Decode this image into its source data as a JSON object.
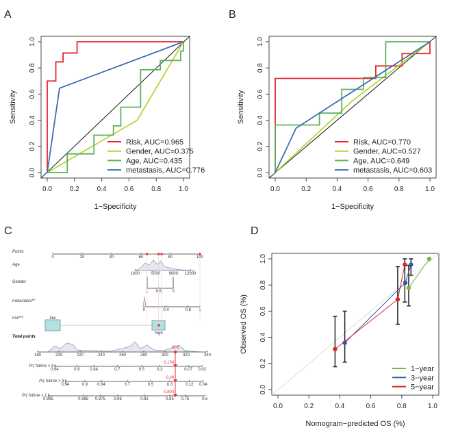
{
  "panels": {
    "a": "A",
    "b": "B",
    "c": "C",
    "d": "D"
  },
  "chart_data": [
    {
      "type": "line",
      "panel": "A",
      "xlabel": "1−Specificity",
      "ylabel": "Sensitivity",
      "xlim": [
        0,
        1
      ],
      "ylim": [
        0,
        1
      ],
      "x_ticks": [
        "0.0",
        "0.2",
        "0.4",
        "0.6",
        "0.8",
        "1.0"
      ],
      "y_ticks": [
        "0.0",
        "0.2",
        "0.4",
        "0.6",
        "0.8",
        "1.0"
      ],
      "diagonal": true,
      "legend_position": "bottom-right",
      "series": [
        {
          "name": "Risk, AUC=0.965",
          "color": "#e8262b",
          "points": [
            [
              0,
              0
            ],
            [
              0,
              0.7
            ],
            [
              0.063,
              0.7
            ],
            [
              0.063,
              0.846
            ],
            [
              0.116,
              0.846
            ],
            [
              0.116,
              0.914
            ],
            [
              0.219,
              0.914
            ],
            [
              0.219,
              1
            ],
            [
              1,
              1
            ]
          ]
        },
        {
          "name": "Gender, AUC=0.375",
          "color": "#b8d432",
          "points": [
            [
              0,
              0
            ],
            [
              0.66,
              0.4
            ],
            [
              1,
              1
            ]
          ]
        },
        {
          "name": "Age, AUC=0.435",
          "color": "#5db15c",
          "points": [
            [
              0,
              0
            ],
            [
              0.147,
              0
            ],
            [
              0.147,
              0.143
            ],
            [
              0.343,
              0.143
            ],
            [
              0.343,
              0.286
            ],
            [
              0.486,
              0.286
            ],
            [
              0.486,
              0.357
            ],
            [
              0.54,
              0.357
            ],
            [
              0.54,
              0.5
            ],
            [
              0.685,
              0.5
            ],
            [
              0.685,
              0.786
            ],
            [
              0.83,
              0.786
            ],
            [
              0.83,
              0.857
            ],
            [
              0.98,
              0.857
            ],
            [
              0.98,
              0.929
            ],
            [
              1,
              0.929
            ],
            [
              1,
              1
            ]
          ]
        },
        {
          "name": "metastasis, AUC=0.776",
          "color": "#3a6fb0",
          "points": [
            [
              0,
              0
            ],
            [
              0.09,
              0.645
            ],
            [
              1,
              1
            ]
          ]
        }
      ]
    },
    {
      "type": "line",
      "panel": "B",
      "xlabel": "1−Specificity",
      "ylabel": "Sensitivity",
      "xlim": [
        0,
        1
      ],
      "ylim": [
        0,
        1
      ],
      "x_ticks": [
        "0.0",
        "0.2",
        "0.4",
        "0.6",
        "0.8",
        "1.0"
      ],
      "y_ticks": [
        "0.0",
        "0.2",
        "0.4",
        "0.6",
        "0.8",
        "1.0"
      ],
      "diagonal": true,
      "legend_position": "bottom-right",
      "series": [
        {
          "name": "Risk, AUC=0.770",
          "color": "#e8262b",
          "points": [
            [
              0,
              0
            ],
            [
              0,
              0.72
            ],
            [
              0.65,
              0.72
            ],
            [
              0.65,
              0.815
            ],
            [
              0.82,
              0.815
            ],
            [
              0.82,
              0.91
            ],
            [
              1,
              0.91
            ],
            [
              1,
              1
            ]
          ]
        },
        {
          "name": "Gender, AUC=0.527",
          "color": "#b8d432",
          "points": [
            [
              0,
              0
            ],
            [
              0.5,
              0.55
            ],
            [
              1,
              1
            ]
          ]
        },
        {
          "name": "Age, AUC=0.649",
          "color": "#5db15c",
          "points": [
            [
              0,
              0
            ],
            [
              0,
              0.364
            ],
            [
              0.286,
              0.364
            ],
            [
              0.286,
              0.455
            ],
            [
              0.43,
              0.455
            ],
            [
              0.43,
              0.636
            ],
            [
              0.57,
              0.636
            ],
            [
              0.57,
              0.727
            ],
            [
              0.714,
              0.727
            ],
            [
              0.714,
              1
            ],
            [
              1,
              1
            ]
          ]
        },
        {
          "name": "metastasis, AUC=0.603",
          "color": "#3a6fb0",
          "points": [
            [
              0,
              0
            ],
            [
              0.135,
              0.34
            ],
            [
              1,
              1
            ]
          ]
        }
      ]
    },
    {
      "type": "nomogram",
      "panel": "C",
      "rows": [
        {
          "label": "Points",
          "italic": true,
          "ticks": [
            [
              "0",
              0
            ],
            [
              "20",
              20
            ],
            [
              "40",
              40
            ],
            [
              "60",
              60
            ],
            [
              "80",
              80
            ],
            [
              "100",
              100
            ]
          ]
        },
        {
          "label": "Age",
          "ticks": [
            [
              "1000",
              56
            ],
            [
              "5000",
              70
            ],
            [
              "9000",
              82
            ],
            [
              "12000",
              93.5
            ]
          ]
        },
        {
          "label": "Gender",
          "ticks": [
            [
              "1",
              64
            ],
            [
              "0.6",
              72
            ],
            [
              "0",
              82
            ]
          ]
        },
        {
          "label": "metastasis**",
          "ticks": [
            [
              "0",
              62
            ],
            [
              "0.4",
              77
            ],
            [
              "0.8",
              92
            ],
            [
              "1",
              100
            ]
          ]
        },
        {
          "label": "risk***",
          "levels": [
            [
              "low",
              0
            ],
            [
              "high",
              72
            ]
          ]
        }
      ],
      "selected_points": [
        64,
        72,
        74,
        100
      ],
      "total_points": {
        "label": "Total points",
        "ticks": [
          "180",
          "200",
          "220",
          "240",
          "260",
          "280",
          "300",
          "320",
          "340"
        ],
        "range": [
          180,
          340
        ],
        "value": "309"
      },
      "probabilities": [
        {
          "label": "Pr( futime > 5 )",
          "value": "0.154",
          "ticks": [
            [
              "0.94",
              196
            ],
            [
              "0.9",
              217
            ],
            [
              "0.84",
              233
            ],
            [
              "0.7",
              255
            ],
            [
              "0.5",
              278
            ],
            [
              "0.3",
              295
            ],
            [
              "0.07",
              322
            ],
            [
              "0.02",
              335
            ]
          ]
        },
        {
          "label": "Pr( futime > 3 )",
          "value": "0.24",
          "ticks": [
            [
              "0.94",
              206
            ],
            [
              "0.9",
              224.5
            ],
            [
              "0.84",
              240
            ],
            [
              "0.7",
              264.5
            ],
            [
              "0.5",
              286.5
            ],
            [
              "0.3",
              304.5
            ],
            [
              "0.12",
              323
            ],
            [
              "0.04",
              336
            ]
          ]
        },
        {
          "label": "Pr( futime > 1 )",
          "value": "0.803",
          "ticks": [
            [
              "0.995",
              190
            ],
            [
              "0.985",
              223
            ],
            [
              "0.975",
              239
            ],
            [
              "0.96",
              255.5
            ],
            [
              "0.92",
              280.6
            ],
            [
              "0.85",
              304.5
            ],
            [
              "0.75",
              319
            ],
            [
              "0.6",
              337.5
            ]
          ]
        }
      ]
    },
    {
      "type": "scatter",
      "panel": "D",
      "xlabel": "Nomogram−predicted OS (%)",
      "ylabel": "Observed OS (%)",
      "xlim": [
        0,
        1
      ],
      "ylim": [
        0,
        1
      ],
      "x_ticks": [
        "0.0",
        "0.2",
        "0.4",
        "0.6",
        "0.8",
        "1.0"
      ],
      "y_ticks": [
        "0.0",
        "0.2",
        "0.4",
        "0.6",
        "0.8",
        "1.0"
      ],
      "diagonal": true,
      "legend_position": "bottom-right",
      "series": [
        {
          "name": "1−year",
          "color": "#7cb342",
          "points": [
            [
              0.845,
              0.778
            ],
            [
              0.978,
              1.0
            ]
          ]
        },
        {
          "name": "3−year",
          "color": "#2f56a8",
          "points": [
            [
              0.432,
              0.358
            ],
            [
              0.823,
              0.817
            ],
            [
              0.86,
              0.956
            ]
          ]
        },
        {
          "name": "5−year",
          "color": "#d9262b",
          "points": [
            [
              0.369,
              0.31
            ],
            [
              0.774,
              0.69
            ],
            [
              0.82,
              0.956
            ]
          ]
        }
      ],
      "error_bars": [
        [
          0.369,
          0.175,
          0.56
        ],
        [
          0.432,
          0.21,
          0.6
        ],
        [
          0.774,
          0.5,
          0.94
        ],
        [
          0.82,
          0.67,
          1.0
        ],
        [
          0.845,
          0.64,
          0.95
        ],
        [
          0.86,
          0.875,
          1.0
        ]
      ]
    }
  ]
}
